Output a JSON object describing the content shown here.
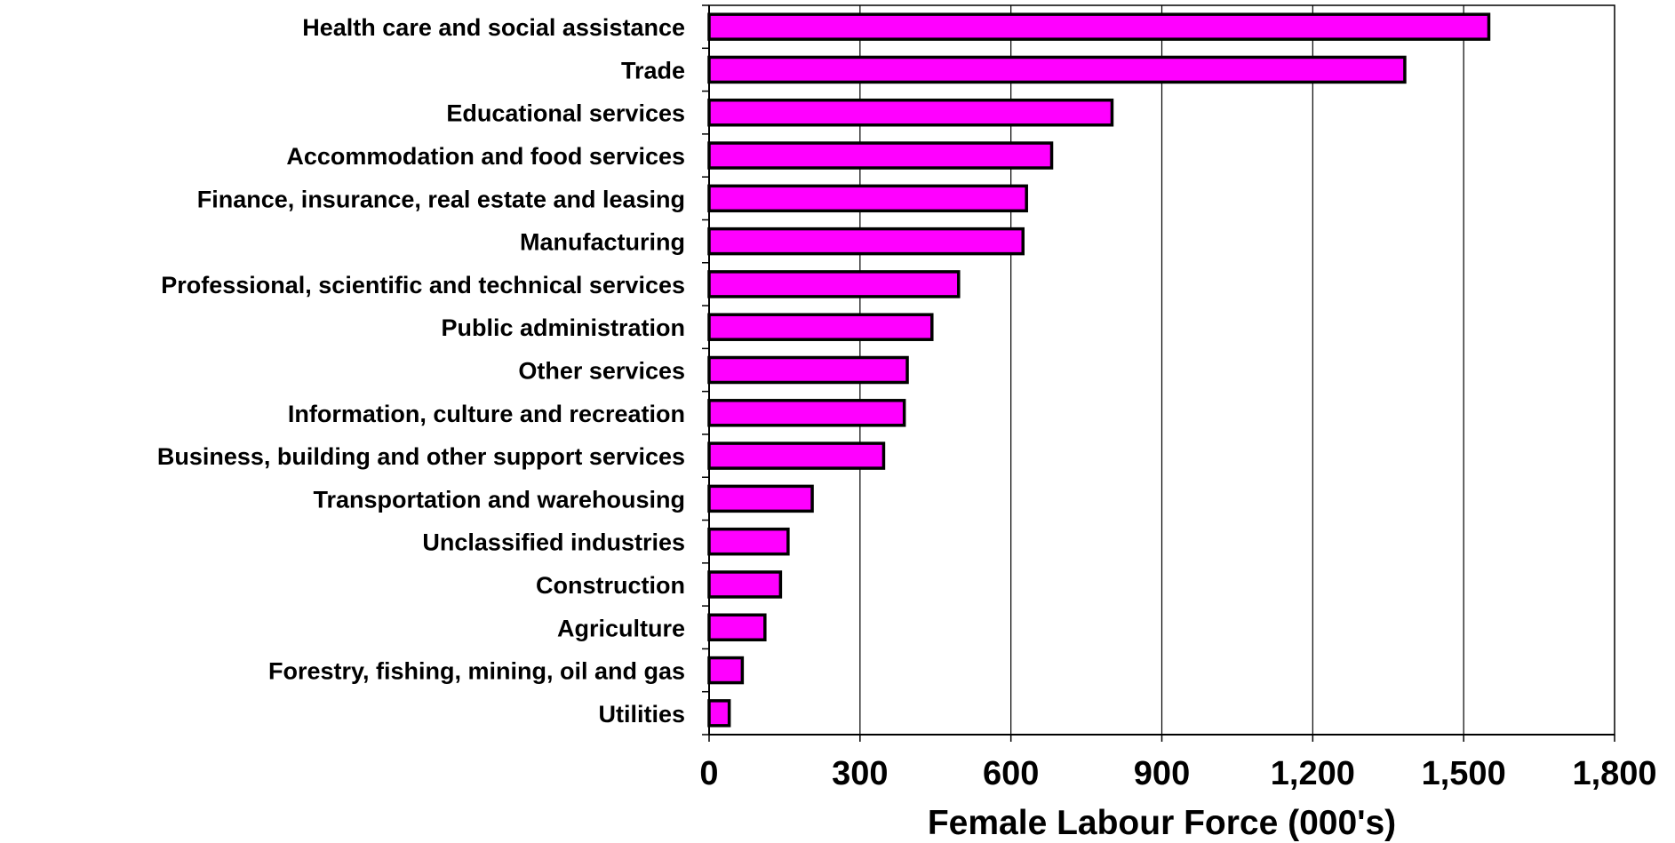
{
  "chart_data": {
    "type": "bar",
    "orientation": "horizontal",
    "title": "",
    "xlabel": "Female Labour Force (000's)",
    "ylabel": "",
    "xlim": [
      0,
      1800
    ],
    "xticks": [
      0,
      300,
      600,
      900,
      1200,
      1500,
      1800
    ],
    "xtick_labels": [
      "0",
      "300",
      "600",
      "900",
      "1,200",
      "1,500",
      "1,800"
    ],
    "grid": "vertical gridlines",
    "legend": "none",
    "bar_color": "#ff00ff",
    "bar_edge_color": "#000000",
    "categories": [
      "Health care and social assistance",
      "Trade",
      "Educational services",
      "Accommodation and food services",
      "Finance, insurance, real estate and leasing",
      "Manufacturing",
      "Professional, scientific and technical services",
      "Public administration",
      "Other services",
      "Information, culture and recreation",
      "Business, building and other support services",
      "Transportation and warehousing",
      "Unclassified industries",
      "Construction",
      "Agriculture",
      "Forestry, fishing, mining, oil and gas",
      "Utilities"
    ],
    "values": [
      1550,
      1383,
      801,
      681,
      631,
      624,
      496,
      443,
      394,
      388,
      347,
      205,
      157,
      142,
      111,
      66,
      40
    ]
  }
}
